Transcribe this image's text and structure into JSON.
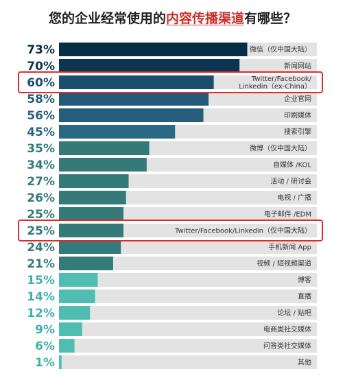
{
  "title": {
    "before": "您的企业经常使用的",
    "highlight": "内容传播渠道",
    "after": "有哪些？"
  },
  "colors": {
    "title_highlight": "#c9302c",
    "track": "#e3e3e3",
    "callout_box": "#e02b2b",
    "label_text": "#333333"
  },
  "chart_data": {
    "type": "bar",
    "orientation": "horizontal",
    "xlim": [
      0,
      100
    ],
    "unit": "%",
    "highlighted_rows": [
      2,
      11
    ],
    "rows": [
      {
        "label": "微信（仅中国大陆）",
        "value": 73,
        "pct_label": "73%",
        "color": "#072e45",
        "pct_color": "#072e45"
      },
      {
        "label": "新闻网站",
        "value": 70,
        "pct_label": "70%",
        "color": "#0b3550",
        "pct_color": "#0b3550"
      },
      {
        "label": "Twitter/Facebook/\nLinkedin（ex-China）",
        "value": 60,
        "pct_label": "60%",
        "color": "#1c4d6b",
        "pct_color": "#1c4d6b"
      },
      {
        "label": "企业官网",
        "value": 58,
        "pct_label": "58%",
        "color": "#245a78",
        "pct_color": "#245a78"
      },
      {
        "label": "印刷媒体",
        "value": 56,
        "pct_label": "56%",
        "color": "#275e7c",
        "pct_color": "#275e7c"
      },
      {
        "label": "搜索引擎",
        "value": 45,
        "pct_label": "45%",
        "color": "#2b6884",
        "pct_color": "#2b6884"
      },
      {
        "label": "微博（仅中国大陆）",
        "value": 35,
        "pct_label": "35%",
        "color": "#337a79",
        "pct_color": "#337a79"
      },
      {
        "label": "自媒体 /KOL",
        "value": 34,
        "pct_label": "34%",
        "color": "#337a79",
        "pct_color": "#337a79"
      },
      {
        "label": "活动 / 研讨会",
        "value": 27,
        "pct_label": "27%",
        "color": "#337a79",
        "pct_color": "#337a79"
      },
      {
        "label": "电视 / 广播",
        "value": 26,
        "pct_label": "26%",
        "color": "#337a79",
        "pct_color": "#337a79"
      },
      {
        "label": "电子邮件 /EDM",
        "value": 25,
        "pct_label": "25%",
        "color": "#337a79",
        "pct_color": "#337a79"
      },
      {
        "label": "Twitter/Facebook/Linkedin（仅中国大陆）",
        "value": 25,
        "pct_label": "25%",
        "color": "#337a79",
        "pct_color": "#337a79"
      },
      {
        "label": "手机新闻 App",
        "value": 24,
        "pct_label": "24%",
        "color": "#337a79",
        "pct_color": "#337a79"
      },
      {
        "label": "视频 / 短视频渠道",
        "value": 21,
        "pct_label": "21%",
        "color": "#337a79",
        "pct_color": "#337a79"
      },
      {
        "label": "博客",
        "value": 15,
        "pct_label": "15%",
        "color": "#4fbdb2",
        "pct_color": "#3fb1a6"
      },
      {
        "label": "直播",
        "value": 14,
        "pct_label": "14%",
        "color": "#4fbdb2",
        "pct_color": "#3fb1a6"
      },
      {
        "label": "论坛 / 贴吧",
        "value": 12,
        "pct_label": "12%",
        "color": "#4fbdb2",
        "pct_color": "#3fb1a6"
      },
      {
        "label": "电商类社交媒体",
        "value": 9,
        "pct_label": "9%",
        "color": "#4fbdb2",
        "pct_color": "#3fb1a6"
      },
      {
        "label": "问答类社交媒体",
        "value": 6,
        "pct_label": "6%",
        "color": "#4fbdb2",
        "pct_color": "#3fb1a6"
      },
      {
        "label": "其他",
        "value": 1,
        "pct_label": "1%",
        "color": "#4fbdb2",
        "pct_color": "#3fb1a6"
      }
    ]
  }
}
